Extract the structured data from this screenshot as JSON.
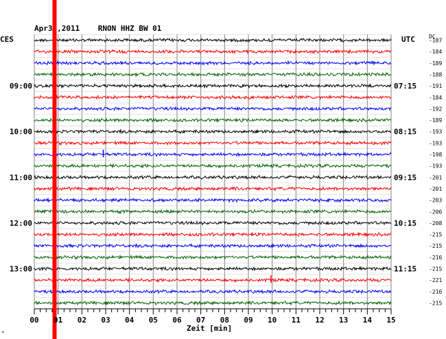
{
  "header": {
    "title": "Apr30,2011    RNON HHZ BW 01",
    "left_zone": "CES",
    "right_zone": "UTC",
    "dc_label": "DC"
  },
  "chart_data": {
    "type": "line",
    "title": "Apr30,2011    RNON HHZ BW 01",
    "xlabel": "Zeit [min]",
    "xlim": [
      0,
      15
    ],
    "x_ticks": [
      "00",
      "01",
      "02",
      "03",
      "04",
      "05",
      "06",
      "07",
      "08",
      "09",
      "10",
      "11",
      "12",
      "13",
      "14",
      "15"
    ],
    "left_time_labels": [
      {
        "row": 4,
        "label": "09:00"
      },
      {
        "row": 8,
        "label": "10:00"
      },
      {
        "row": 12,
        "label": "11:00"
      },
      {
        "row": 16,
        "label": "12:00"
      },
      {
        "row": 20,
        "label": "13:00"
      }
    ],
    "right_time_labels": [
      {
        "row": 4,
        "label": "07:15"
      },
      {
        "row": 8,
        "label": "08:15"
      },
      {
        "row": 12,
        "label": "09:15"
      },
      {
        "row": 16,
        "label": "10:15"
      },
      {
        "row": 20,
        "label": "11:15"
      }
    ],
    "dc_offsets": [
      -187,
      -184,
      -189,
      -188,
      -191,
      -184,
      -192,
      -189,
      -193,
      -193,
      -198,
      -193,
      -201,
      -201,
      -203,
      -206,
      -208,
      -215,
      -215,
      -216,
      -215,
      -221,
      -216,
      -215
    ],
    "trace_colors": [
      "#000000",
      "#ff0000",
      "#0000ff",
      "#006400"
    ],
    "marker": {
      "x_min": 0.85,
      "color": "#ff0000"
    },
    "spikes": [
      {
        "row": 21,
        "x_min": 9.95
      },
      {
        "row": 10,
        "x_min": 2.9
      }
    ]
  }
}
